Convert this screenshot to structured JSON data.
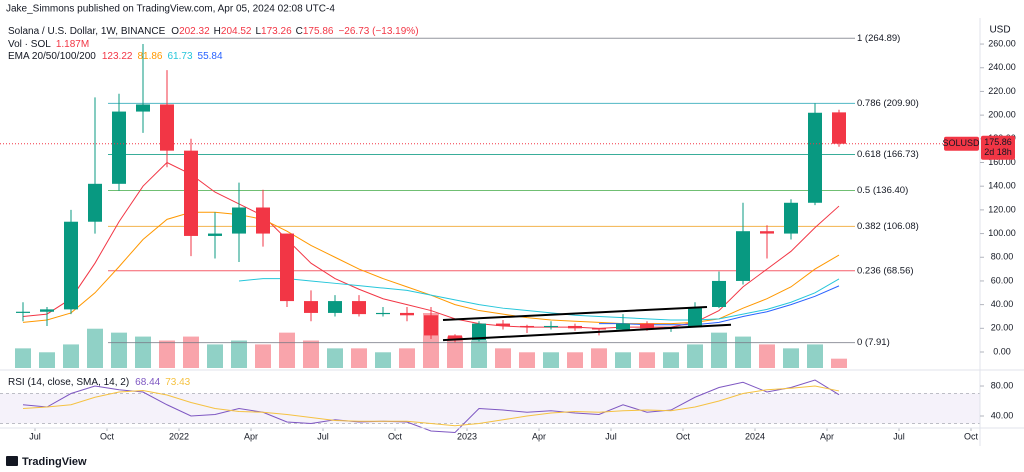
{
  "header": {
    "attribution": "Jake_Simmons published on TradingView.com, Apr 05, 2024 02:08 UTC-4",
    "brand": "TradingView"
  },
  "chart_data": {
    "type": "candlestick",
    "title": "Solana / U.S. Dollar, 1W, BINANCE",
    "currency": "USD",
    "ohlc_labels": [
      "O",
      "H",
      "L",
      "C"
    ],
    "change": "−26.73 (−13.19%)",
    "x": [
      "2021-06",
      "2021-07",
      "2021-08",
      "2021-09",
      "2021-10",
      "2021-11",
      "2021-12",
      "2022-01",
      "2022-02",
      "2022-03",
      "2022-04",
      "2022-05",
      "2022-06",
      "2022-07",
      "2022-08",
      "2022-09",
      "2022-10",
      "2022-11",
      "2022-12",
      "2023-01",
      "2023-02",
      "2023-03",
      "2023-04",
      "2023-05",
      "2023-06",
      "2023-07",
      "2023-08",
      "2023-09",
      "2023-10",
      "2023-11",
      "2023-12",
      "2024-01",
      "2024-02",
      "2024-03",
      "2024-04"
    ],
    "ohlc": [
      [
        33,
        42,
        26,
        34
      ],
      [
        34,
        38,
        22,
        36
      ],
      [
        36,
        120,
        32,
        110
      ],
      [
        110,
        215,
        100,
        142
      ],
      [
        142,
        218,
        136,
        203
      ],
      [
        203,
        260,
        185,
        209
      ],
      [
        209,
        238,
        156,
        170
      ],
      [
        170,
        180,
        81,
        98
      ],
      [
        98,
        118,
        79,
        100
      ],
      [
        100,
        143,
        76,
        122
      ],
      [
        122,
        137,
        89,
        100
      ],
      [
        100,
        100,
        38,
        43
      ],
      [
        43,
        52,
        26,
        33
      ],
      [
        33,
        48,
        30,
        43
      ],
      [
        43,
        48,
        30,
        32
      ],
      [
        32,
        38,
        30,
        33
      ],
      [
        33,
        38,
        26,
        31
      ],
      [
        31,
        38,
        11,
        14
      ],
      [
        14,
        15,
        8,
        10
      ],
      [
        10,
        26,
        9,
        24
      ],
      [
        24,
        27,
        19,
        22
      ],
      [
        22,
        23,
        16,
        21
      ],
      [
        21,
        26,
        19,
        22
      ],
      [
        22,
        24,
        18,
        20
      ],
      [
        20,
        20,
        14,
        19
      ],
      [
        19,
        32,
        18,
        24
      ],
      [
        24,
        26,
        18,
        20
      ],
      [
        20,
        21,
        17,
        21
      ],
      [
        21,
        42,
        21,
        38
      ],
      [
        38,
        68,
        37,
        60
      ],
      [
        60,
        126,
        57,
        102
      ],
      [
        102,
        107,
        79,
        100
      ],
      [
        100,
        129,
        95,
        126
      ],
      [
        126,
        210,
        124,
        202
      ],
      [
        202.32,
        204.52,
        173.26,
        175.86
      ]
    ],
    "up_color": "#089981",
    "down_color": "#f23645",
    "ylim": [
      -13.5,
      282
    ],
    "yticks": [
      {
        "value": 0,
        "label": "0.00"
      },
      {
        "value": 20,
        "label": "20.00"
      },
      {
        "value": 40,
        "label": "40.00"
      },
      {
        "value": 60,
        "label": "60.00"
      },
      {
        "value": 80,
        "label": "80.00"
      },
      {
        "value": 100,
        "label": "100.00"
      },
      {
        "value": 120,
        "label": "120.00"
      },
      {
        "value": 140,
        "label": "140.00"
      },
      {
        "value": 160,
        "label": "160.00"
      },
      {
        "value": 180,
        "label": "180.00"
      },
      {
        "value": 200,
        "label": "200.00"
      },
      {
        "value": 220,
        "label": "220.00"
      },
      {
        "value": 240,
        "label": "240.00"
      },
      {
        "value": 260,
        "label": "260.00"
      }
    ],
    "xticks": [
      {
        "value": "2021-07",
        "label": "Jul"
      },
      {
        "value": "2021-10",
        "label": "Oct"
      },
      {
        "value": "2022-01",
        "label": "2022"
      },
      {
        "value": "2022-04",
        "label": "Apr"
      },
      {
        "value": "2022-07",
        "label": "Jul"
      },
      {
        "value": "2022-10",
        "label": "Oct"
      },
      {
        "value": "2023-01",
        "label": "2023"
      },
      {
        "value": "2023-04",
        "label": "Apr"
      },
      {
        "value": "2023-07",
        "label": "Jul"
      },
      {
        "value": "2023-10",
        "label": "Oct"
      },
      {
        "value": "2024-01",
        "label": "2024"
      },
      {
        "value": "2024-04",
        "label": "Apr"
      },
      {
        "value": "2024-07",
        "label": "Jul"
      },
      {
        "value": "2024-10",
        "label": "Oct"
      }
    ],
    "volume": {
      "name": "Vol · SOL",
      "values": [
        2.5,
        2,
        3,
        5,
        4.5,
        4,
        3.5,
        4,
        3,
        3.5,
        3,
        4.5,
        3.5,
        2.5,
        2.5,
        2,
        2.5,
        7,
        4,
        3.5,
        2.5,
        2,
        2,
        2,
        2.5,
        2,
        2,
        2,
        3,
        4.5,
        4,
        3,
        2.5,
        3,
        1.187
      ],
      "value_labels": [
        null,
        null,
        null,
        null,
        null,
        null,
        null,
        null,
        null,
        null,
        null,
        null,
        null,
        null,
        null,
        null,
        null,
        null,
        null,
        null,
        null,
        null,
        null,
        null,
        null,
        null,
        null,
        null,
        null,
        null,
        null,
        null,
        null,
        null,
        "1.187M"
      ]
    },
    "ema": {
      "name": "EMA 20/50/100/200",
      "series": [
        {
          "color": "#f23645",
          "values": [
            30,
            32,
            45,
            75,
            110,
            140,
            160,
            150,
            135,
            125,
            115,
            95,
            75,
            62,
            53,
            45,
            40,
            35,
            28,
            24,
            22,
            21,
            21,
            21,
            20,
            21,
            21,
            21,
            25,
            35,
            55,
            70,
            85,
            105,
            123.22
          ]
        },
        {
          "color": "#ff9800",
          "values": [
            25,
            27,
            33,
            50,
            72,
            95,
            112,
            118,
            118,
            116,
            112,
            102,
            90,
            80,
            70,
            62,
            55,
            48,
            40,
            35,
            32,
            29,
            27,
            26,
            25,
            24,
            24,
            24,
            25,
            28,
            37,
            45,
            55,
            70,
            81.86
          ]
        },
        {
          "color": "#26c6da",
          "values": [
            null,
            null,
            null,
            null,
            null,
            null,
            null,
            null,
            null,
            60,
            62,
            62,
            60,
            58,
            56,
            54,
            52,
            48,
            44,
            40,
            37,
            35,
            33,
            31,
            30,
            29,
            28,
            27,
            27,
            28,
            32,
            36,
            42,
            50,
            61.73
          ]
        },
        {
          "color": "#2962ff",
          "values": [
            null,
            null,
            null,
            null,
            null,
            null,
            null,
            null,
            null,
            null,
            null,
            null,
            null,
            null,
            null,
            null,
            null,
            null,
            null,
            null,
            null,
            null,
            null,
            null,
            24,
            24,
            23,
            23,
            23,
            25,
            30,
            34,
            40,
            47,
            55.84
          ]
        }
      ]
    },
    "fib_levels": [
      {
        "price": 264.89,
        "label": "1 (264.89)",
        "color": "#787b86"
      },
      {
        "price": 209.9,
        "label": "0.786 (209.90)",
        "color": "#26a6b5"
      },
      {
        "price": 166.73,
        "label": "0.618 (166.73)",
        "color": "#089981"
      },
      {
        "price": 136.4,
        "label": "0.5 (136.40)",
        "color": "#4caf50"
      },
      {
        "price": 106.08,
        "label": "0.382 (106.08)",
        "color": "#f0a020"
      },
      {
        "price": 68.56,
        "label": "0.236 (68.56)",
        "color": "#f23645"
      },
      {
        "price": 7.91,
        "label": "0 (7.91)",
        "color": "#787b86"
      }
    ],
    "trendlines": [
      {
        "x": [
          "2022-12",
          "2023-11"
        ],
        "y": [
          27,
          38
        ]
      },
      {
        "x": [
          "2022-12",
          "2023-12"
        ],
        "y": [
          10,
          23
        ]
      }
    ],
    "price_tag": {
      "symbol": "SOLUSD",
      "countdown": "2d 18h"
    },
    "rsi": {
      "name": "RSI (14, close, SMA, 14, 2)",
      "ylim": [
        24,
        98.7
      ],
      "yticks": [
        {
          "value": 80,
          "label": "80.00"
        },
        {
          "value": 40,
          "label": "40.00"
        }
      ],
      "bands": [
        30,
        70
      ],
      "series": [
        {
          "color": "#7e57c2",
          "values": [
            55,
            52,
            70,
            80,
            75,
            72,
            55,
            40,
            42,
            50,
            45,
            32,
            30,
            35,
            32,
            33,
            32,
            20,
            18,
            50,
            48,
            45,
            47,
            44,
            42,
            55,
            45,
            48,
            65,
            78,
            85,
            72,
            78,
            88,
            68.44
          ]
        },
        {
          "color": "#f5c242",
          "values": [
            50,
            52,
            55,
            65,
            72,
            74,
            68,
            58,
            50,
            46,
            45,
            42,
            38,
            34,
            33,
            33,
            33,
            30,
            27,
            30,
            35,
            40,
            44,
            46,
            45,
            47,
            48,
            47,
            52,
            60,
            70,
            75,
            77,
            80,
            73.43
          ]
        }
      ]
    }
  }
}
